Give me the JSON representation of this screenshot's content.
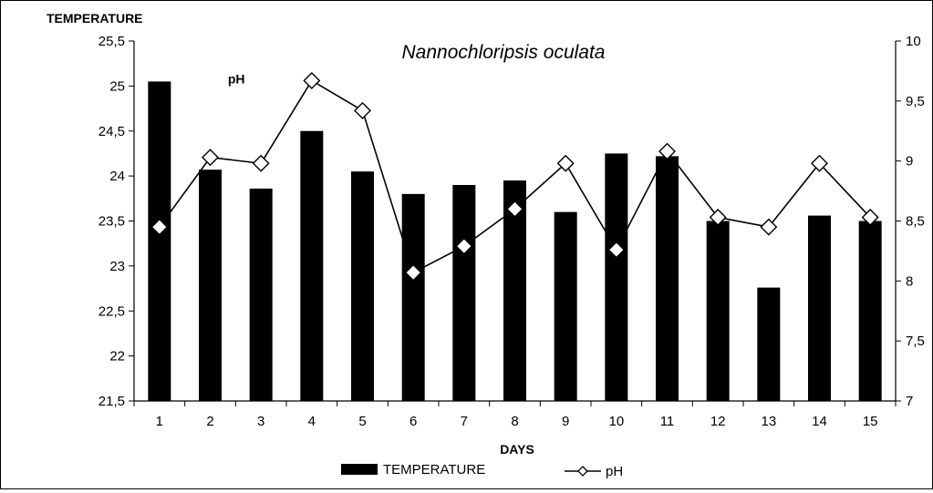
{
  "chart_data": {
    "type": "bar+line",
    "title": "Nannochloripsis oculata",
    "xlabel": "DAYS",
    "ylabel_left": "TEMPERATURE",
    "ylabel_right": "",
    "line_annotation": "pH",
    "categories": [
      "1",
      "2",
      "3",
      "4",
      "5",
      "6",
      "7",
      "8",
      "9",
      "10",
      "11",
      "12",
      "13",
      "14",
      "15"
    ],
    "left_axis": {
      "min": 21.5,
      "max": 25.5,
      "step": 0.5,
      "tick_labels": [
        "21,5",
        "22",
        "22,5",
        "23",
        "23,5",
        "24",
        "24,5",
        "25",
        "25,5"
      ]
    },
    "right_axis": {
      "min": 7,
      "max": 10,
      "step": 0.5,
      "tick_labels": [
        "7",
        "7,5",
        "8",
        "8,5",
        "9",
        "9,5",
        "10"
      ]
    },
    "series": [
      {
        "name": "TEMPERATURE",
        "type": "bar",
        "axis": "left",
        "color": "#000000",
        "values": [
          25.05,
          24.07,
          23.86,
          24.5,
          24.05,
          23.8,
          23.9,
          23.95,
          23.6,
          24.25,
          24.22,
          23.5,
          22.76,
          23.56,
          23.5
        ]
      },
      {
        "name": "pH",
        "type": "line",
        "axis": "right",
        "color": "#000000",
        "marker": "diamond",
        "values": [
          8.45,
          9.03,
          8.98,
          9.67,
          9.42,
          8.07,
          8.29,
          8.6,
          8.98,
          8.26,
          9.08,
          8.53,
          8.45,
          8.98,
          8.53
        ]
      }
    ],
    "legend": {
      "placement": "bottom",
      "entries": [
        "TEMPERATURE",
        "pH"
      ]
    },
    "grid": false
  }
}
